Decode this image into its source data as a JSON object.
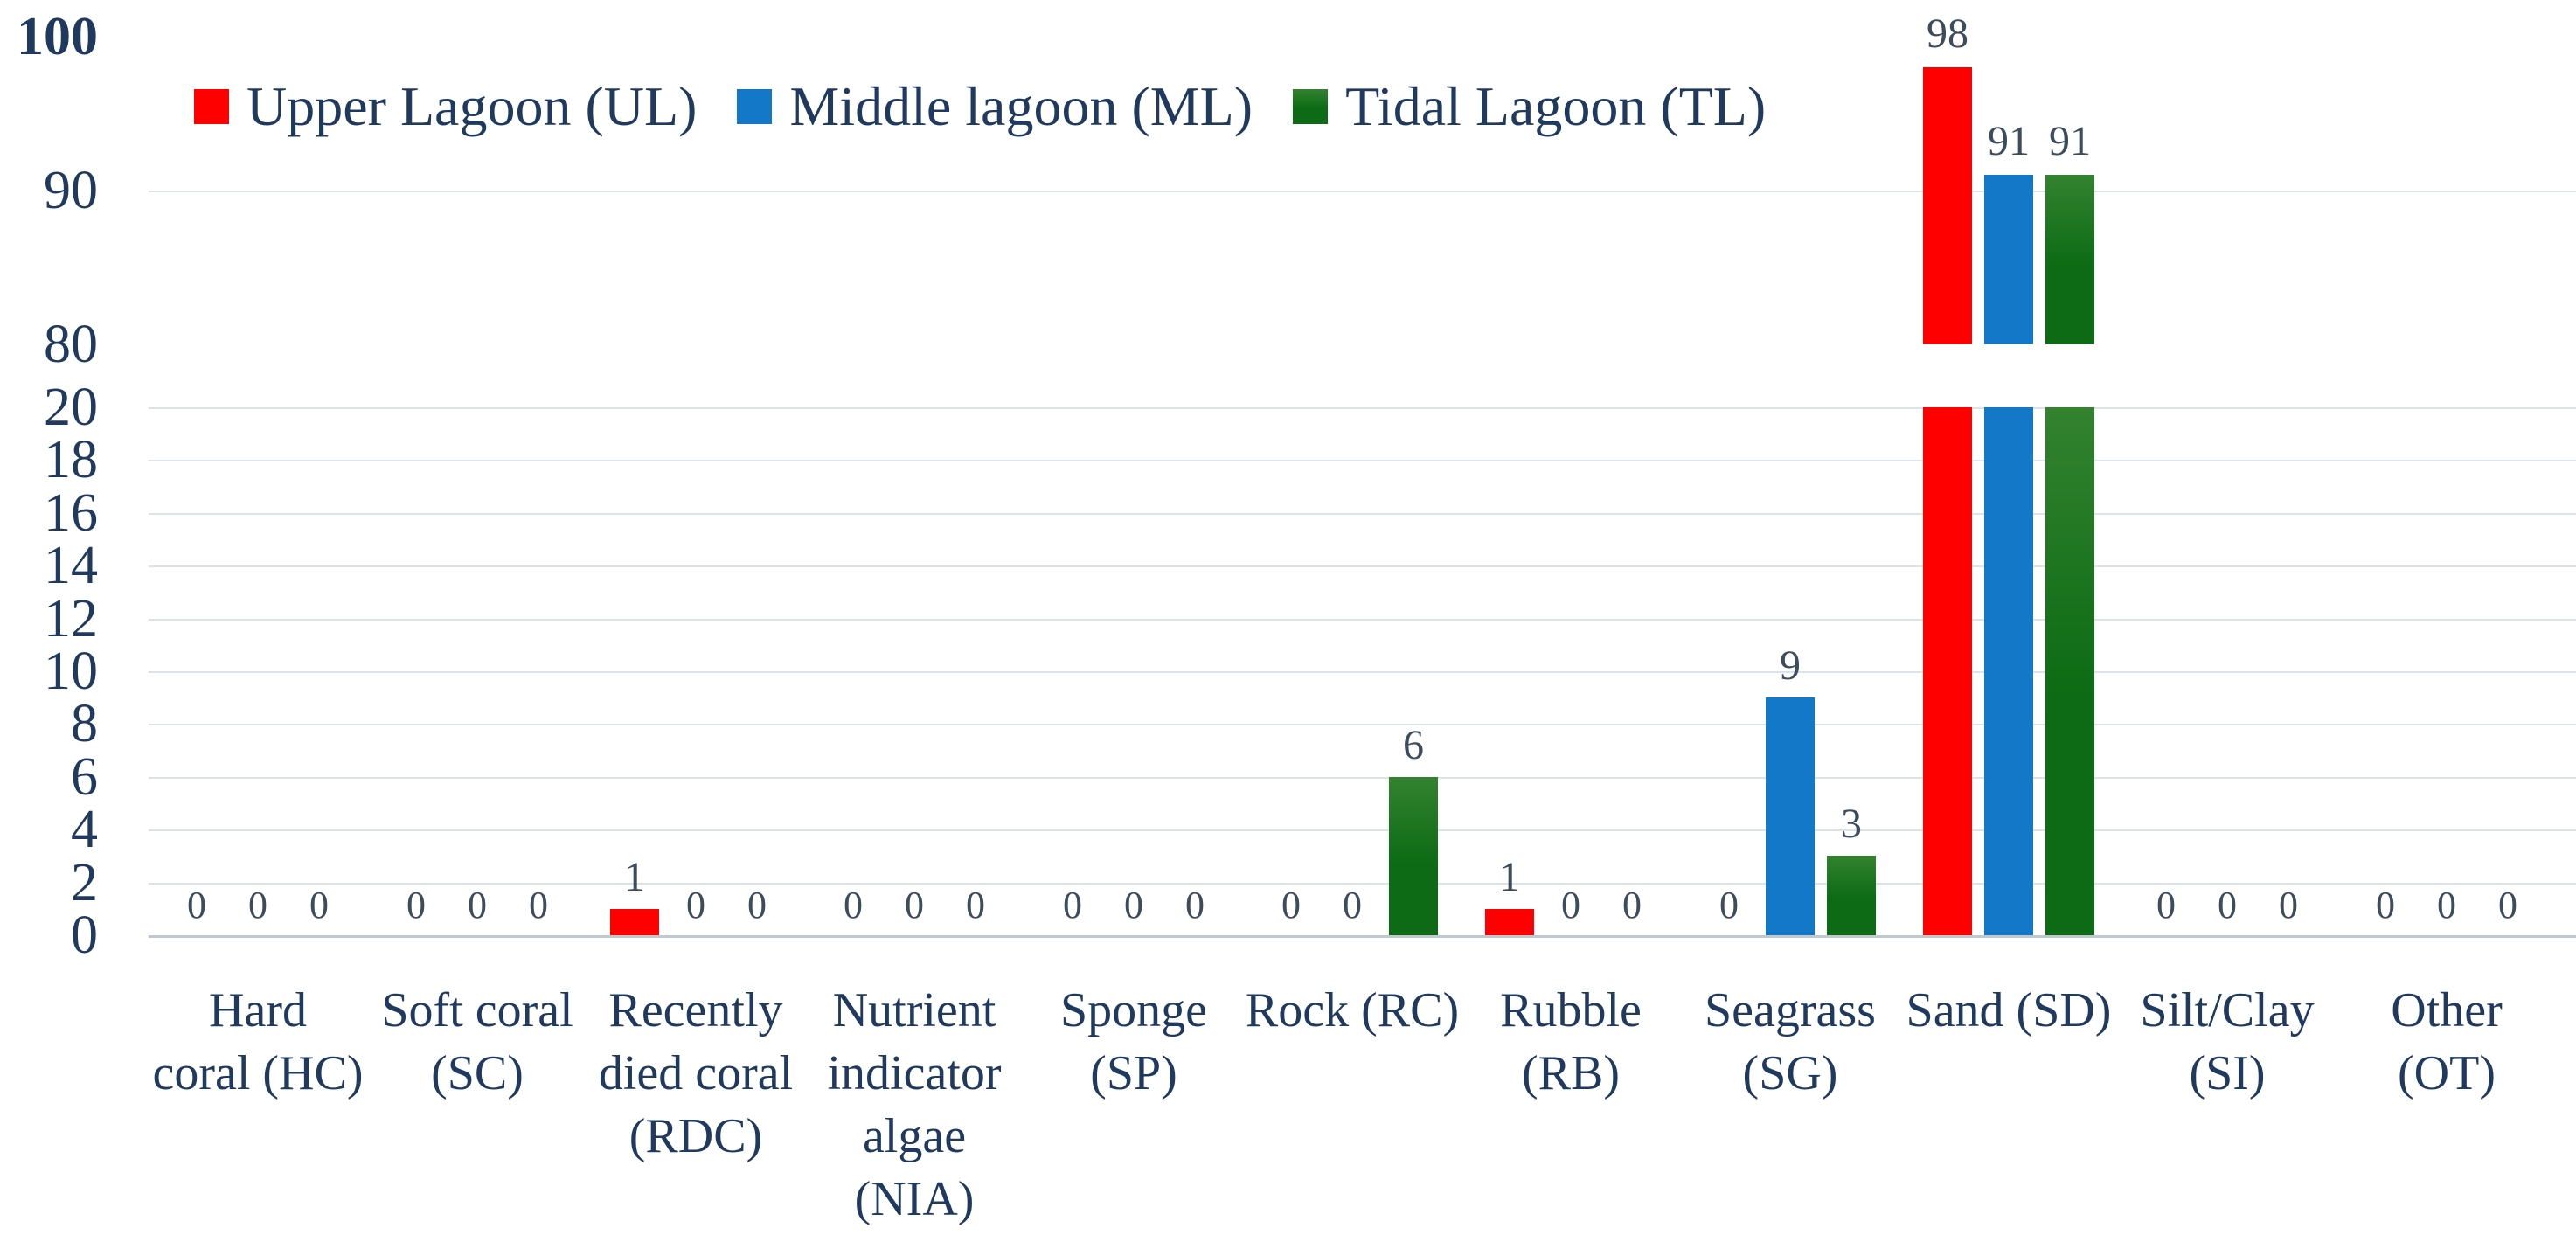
{
  "chart_data": {
    "type": "bar",
    "title": "",
    "xlabel": "",
    "ylabel": "",
    "grid": true,
    "legend_position": "top",
    "data_labels": true,
    "y_axis": {
      "broken": true,
      "lower_range": [
        0,
        20
      ],
      "lower_ticks": [
        0,
        2,
        4,
        6,
        8,
        10,
        12,
        14,
        16,
        18,
        20
      ],
      "upper_range": [
        80,
        100
      ],
      "upper_ticks": [
        80,
        90,
        100
      ],
      "upper_gridlines": [
        90
      ]
    },
    "categories": [
      "Hard coral (HC)",
      "Soft coral (SC)",
      "Recently died coral (RDC)",
      "Nutrient indicator algae (NIA)",
      "Sponge (SP)",
      "Rock (RC)",
      "Rubble (RB)",
      "Seagrass (SG)",
      "Sand (SD)",
      "Silt/Clay (SI)",
      "Other (OT)"
    ],
    "category_label_lines": [
      [
        "Hard",
        "coral (HC)"
      ],
      [
        "Soft coral",
        "(SC)"
      ],
      [
        "Recently",
        "died coral",
        "(RDC)"
      ],
      [
        "Nutrient",
        "indicator",
        "algae",
        "(NIA)"
      ],
      [
        "Sponge",
        "(SP)"
      ],
      [
        "Rock (RC)"
      ],
      [
        "Rubble",
        "(RB)"
      ],
      [
        "Seagrass",
        "(SG)"
      ],
      [
        "Sand (SD)"
      ],
      [
        "Silt/Clay",
        "(SI)"
      ],
      [
        "Other",
        "(OT)"
      ]
    ],
    "series": [
      {
        "name": "Upper Lagoon (UL)",
        "color": "#fe0000",
        "values": [
          0,
          0,
          1,
          0,
          0,
          0,
          1,
          0,
          98,
          0,
          0
        ]
      },
      {
        "name": "Middle lagoon (ML)",
        "color": "#1478c8",
        "values": [
          0,
          0,
          0,
          0,
          0,
          0,
          0,
          9,
          91,
          0,
          0
        ]
      },
      {
        "name": "Tidal Lagoon (TL)",
        "color": "#0c6b14",
        "color_top": "#338230",
        "gradient": true,
        "values": [
          0,
          0,
          0,
          0,
          0,
          6,
          0,
          3,
          91,
          0,
          0
        ]
      }
    ],
    "colors": {
      "text": "#1f3a5e",
      "data_label_text": "#3d4c5c",
      "gridline": "#dbe2e9",
      "axis_baseline": "#bdc8d1",
      "background": "#ffffff"
    }
  }
}
